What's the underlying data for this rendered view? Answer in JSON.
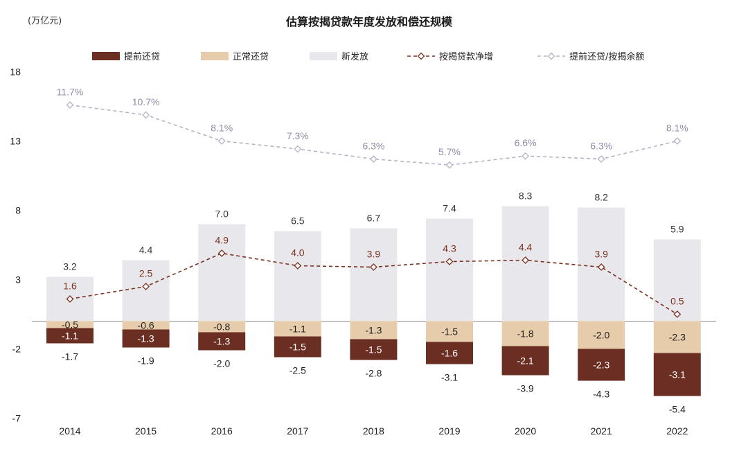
{
  "chart_data": {
    "type": "bar",
    "title": "估算按揭贷款年度发放和偿还规模",
    "unit_label": "(万亿元)",
    "categories": [
      "2014",
      "2015",
      "2016",
      "2017",
      "2018",
      "2019",
      "2020",
      "2021",
      "2022"
    ],
    "ylim": [
      -7,
      18
    ],
    "yticks": [
      18,
      13,
      8,
      3,
      -2,
      -7
    ],
    "grid": false,
    "legend_position": "top",
    "series": [
      {
        "name": "提前还贷",
        "kind": "bar_negative_outer",
        "color": "#6b2e22",
        "values": [
          -1.1,
          -1.3,
          -1.3,
          -1.5,
          -1.5,
          -1.6,
          -2.1,
          -2.3,
          -3.1
        ],
        "labels": [
          "-1.1",
          "-1.3",
          "-1.3",
          "-1.5",
          "-1.5",
          "-1.6",
          "-2.1",
          "-2.3",
          "-3.1"
        ]
      },
      {
        "name": "正常还贷",
        "kind": "bar_negative_inner",
        "color": "#e6ccaa",
        "values": [
          -0.5,
          -0.6,
          -0.8,
          -1.1,
          -1.3,
          -1.5,
          -1.8,
          -2.0,
          -2.3
        ],
        "labels": [
          "-0.5",
          "-0.6",
          "-0.8",
          "-1.1",
          "-1.3",
          "-1.5",
          "-1.8",
          "-2.0",
          "-2.3"
        ]
      },
      {
        "name": "新发放",
        "kind": "bar_positive",
        "color": "#e8e8ec",
        "values": [
          3.2,
          4.4,
          7.0,
          6.5,
          6.7,
          7.4,
          8.3,
          8.2,
          5.9
        ],
        "labels": [
          "3.2",
          "4.4",
          "7.0",
          "6.5",
          "6.7",
          "7.4",
          "8.3",
          "8.2",
          "5.9"
        ]
      },
      {
        "name": "按揭贷款净增",
        "kind": "line",
        "color": "#7b3020",
        "values": [
          1.6,
          2.5,
          4.9,
          4.0,
          3.9,
          4.3,
          4.4,
          3.9,
          0.5
        ],
        "labels": [
          "1.6",
          "2.5",
          "4.9",
          "4.0",
          "3.9",
          "4.3",
          "4.4",
          "3.9",
          "0.5"
        ]
      },
      {
        "name": "提前还贷/按揭余额",
        "kind": "line_pct",
        "color": "#b4b4c4",
        "values": [
          11.7,
          10.7,
          8.1,
          7.3,
          6.3,
          5.7,
          6.6,
          6.3,
          8.1
        ],
        "labels": [
          "11.7%",
          "10.7%",
          "8.1%",
          "7.3%",
          "6.3%",
          "5.7%",
          "6.6%",
          "6.3%",
          "8.1%"
        ]
      }
    ],
    "totals_repayment": {
      "values": [
        -1.7,
        -1.9,
        -2.0,
        -2.5,
        -2.8,
        -3.1,
        -3.9,
        -4.3,
        -5.4
      ],
      "labels": [
        "-1.7",
        "-1.9",
        "-2.0",
        "-2.5",
        "-2.8",
        "-3.1",
        "-3.9",
        "-4.3",
        "-5.4"
      ]
    }
  }
}
